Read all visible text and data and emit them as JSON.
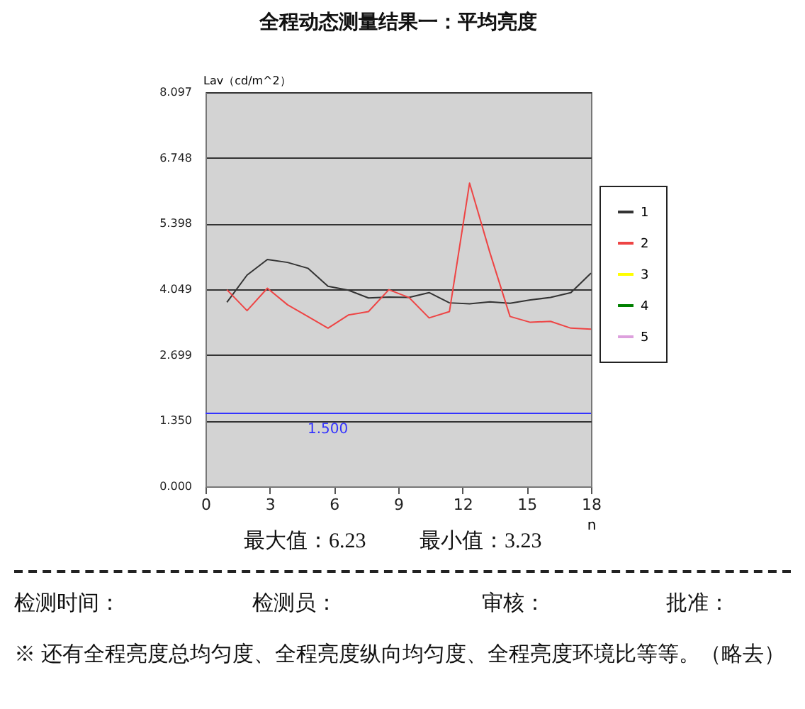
{
  "chart_data": {
    "type": "line",
    "title": "全程动态测量结果一：平均亮度",
    "xlabel": "n",
    "ylabel": "Lav（cd/m^2）",
    "x": [
      1,
      1.94,
      2.89,
      3.83,
      4.78,
      5.72,
      6.67,
      7.61,
      8.56,
      9.5,
      10.44,
      11.39,
      12.33,
      13.28,
      14.22,
      15.17,
      16.11,
      17.06,
      18
    ],
    "series": [
      {
        "name": "1",
        "color": "#333333",
        "values": [
          3.78,
          4.34,
          4.66,
          4.6,
          4.48,
          4.11,
          4.03,
          3.87,
          3.89,
          3.88,
          3.98,
          3.77,
          3.75,
          3.79,
          3.76,
          3.83,
          3.88,
          3.98,
          4.38
        ]
      },
      {
        "name": "2",
        "color": "#ee4444",
        "values": [
          4.04,
          3.61,
          4.07,
          3.73,
          3.49,
          3.25,
          3.52,
          3.59,
          4.04,
          3.88,
          3.46,
          3.59,
          6.23,
          4.8,
          3.49,
          3.37,
          3.39,
          3.25,
          3.23
        ]
      },
      {
        "name": "3",
        "color": "#ffff00",
        "values": [
          null,
          null,
          null,
          null,
          null,
          null,
          null,
          null,
          null,
          null,
          null,
          null,
          null,
          null,
          null,
          null,
          null,
          null,
          null
        ]
      },
      {
        "name": "4",
        "color": "#008000",
        "values": [
          null,
          null,
          null,
          null,
          null,
          null,
          null,
          null,
          null,
          null,
          null,
          null,
          null,
          null,
          null,
          null,
          null,
          null,
          null
        ]
      },
      {
        "name": "5",
        "color": "#dda0dd",
        "values": [
          null,
          null,
          null,
          null,
          null,
          null,
          null,
          null,
          null,
          null,
          null,
          null,
          null,
          null,
          null,
          null,
          null,
          null,
          null
        ]
      }
    ],
    "xlim": [
      0,
      18
    ],
    "xticks": [
      0,
      3,
      6,
      9,
      12,
      15,
      18
    ],
    "ylim": [
      0,
      8.097
    ],
    "yticks": [
      {
        "value": 0,
        "label": "0.000"
      },
      {
        "value": 1.35,
        "label": "1.350"
      },
      2.699,
      4.049,
      5.398,
      6.748,
      8.097
    ],
    "ref_lines": [
      {
        "axis": "y",
        "value": 1.5,
        "label": "1.500",
        "color": "#3333ff"
      }
    ],
    "grid": "y",
    "legend": "right",
    "marker": "none",
    "line_style": "solid",
    "annotations": [
      "最大值：6.23",
      "最小值：3.23",
      "检测时间：",
      "检测员：",
      "审核：",
      "批准：",
      "※  还有全程亮度总均匀度、全程亮度纵向均匀度、全程亮度环境比等等。（略去）"
    ]
  }
}
